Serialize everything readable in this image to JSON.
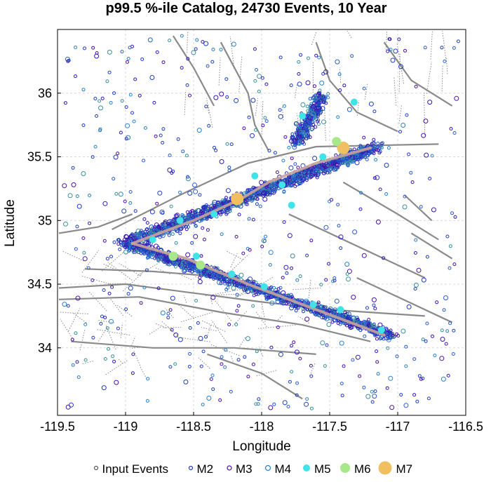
{
  "chart_data": {
    "type": "scatter",
    "title": "p99.5 %-ile Catalog, 24730 Events, 10 Year",
    "xlabel": "Longitude",
    "ylabel": "Latitude",
    "xlim": [
      -119.5,
      -116.5
    ],
    "ylim": [
      33.47,
      36.5
    ],
    "x_ticks": [
      -119.5,
      -119,
      -118.5,
      -118,
      -117.5,
      -117,
      -116.5
    ],
    "x_tick_labels": [
      "-119.5",
      "-119",
      "-118.5",
      "-118",
      "-117.5",
      "-117",
      "-116.5"
    ],
    "y_ticks": [
      34,
      34.5,
      35,
      35.5,
      36
    ],
    "y_tick_labels": [
      "34",
      "34.5",
      "35",
      "35.5",
      "36"
    ],
    "grid": true,
    "legend_position": "bottom",
    "legend": [
      {
        "name": "Input Events",
        "marker": "small-open-circle",
        "color": "#555555"
      },
      {
        "name": "M2",
        "marker": "open-circle",
        "color": "#1f3fbf"
      },
      {
        "name": "M3",
        "marker": "open-circle",
        "color": "#4b0fa8"
      },
      {
        "name": "M4",
        "marker": "open-circle",
        "color": "#2a7fc9"
      },
      {
        "name": "M5",
        "marker": "filled-circle",
        "color": "#3fe3e8"
      },
      {
        "name": "M6",
        "marker": "filled-circle",
        "color": "#a8e88a"
      },
      {
        "name": "M7",
        "marker": "filled-circle",
        "color": "#f0c060"
      }
    ],
    "rupture_traces": [
      {
        "points": [
          [
            -118.95,
            34.82
          ],
          [
            -118.5,
            35.0
          ],
          [
            -118.15,
            35.17
          ],
          [
            -117.95,
            35.3
          ],
          [
            -117.6,
            35.45
          ],
          [
            -117.2,
            35.57
          ]
        ]
      },
      {
        "points": [
          [
            -118.95,
            34.82
          ],
          [
            -118.55,
            34.7
          ],
          [
            -118.1,
            34.5
          ],
          [
            -117.6,
            34.3
          ],
          [
            -117.1,
            34.1
          ]
        ]
      }
    ],
    "large_events": [
      {
        "magnitude": "M7",
        "lon": -117.4,
        "lat": 35.57
      },
      {
        "magnitude": "M7",
        "lon": -118.18,
        "lat": 35.17
      },
      {
        "magnitude": "M6",
        "lon": -117.45,
        "lat": 35.62
      },
      {
        "magnitude": "M6",
        "lon": -118.65,
        "lat": 34.72
      },
      {
        "magnitude": "M6",
        "lon": -118.45,
        "lat": 34.65
      },
      {
        "magnitude": "M5",
        "lon": -117.7,
        "lat": 35.82
      },
      {
        "magnitude": "M5",
        "lon": -117.32,
        "lat": 35.93
      },
      {
        "magnitude": "M5",
        "lon": -117.85,
        "lat": 35.28
      },
      {
        "magnitude": "M5",
        "lon": -117.78,
        "lat": 35.12
      },
      {
        "magnitude": "M5",
        "lon": -118.05,
        "lat": 35.35
      },
      {
        "magnitude": "M5",
        "lon": -118.35,
        "lat": 35.05
      },
      {
        "magnitude": "M5",
        "lon": -118.48,
        "lat": 34.72
      },
      {
        "magnitude": "M5",
        "lon": -118.22,
        "lat": 34.58
      },
      {
        "magnitude": "M5",
        "lon": -117.98,
        "lat": 34.48
      },
      {
        "magnitude": "M5",
        "lon": -117.62,
        "lat": 34.34
      },
      {
        "magnitude": "M5",
        "lon": -117.42,
        "lat": 34.3
      },
      {
        "magnitude": "M5",
        "lon": -117.12,
        "lat": 34.14
      },
      {
        "magnitude": "M5",
        "lon": -118.8,
        "lat": 34.85
      },
      {
        "magnitude": "M5",
        "lon": -117.55,
        "lat": 35.5
      },
      {
        "magnitude": "M5",
        "lon": -118.6,
        "lat": 35.0
      }
    ]
  }
}
